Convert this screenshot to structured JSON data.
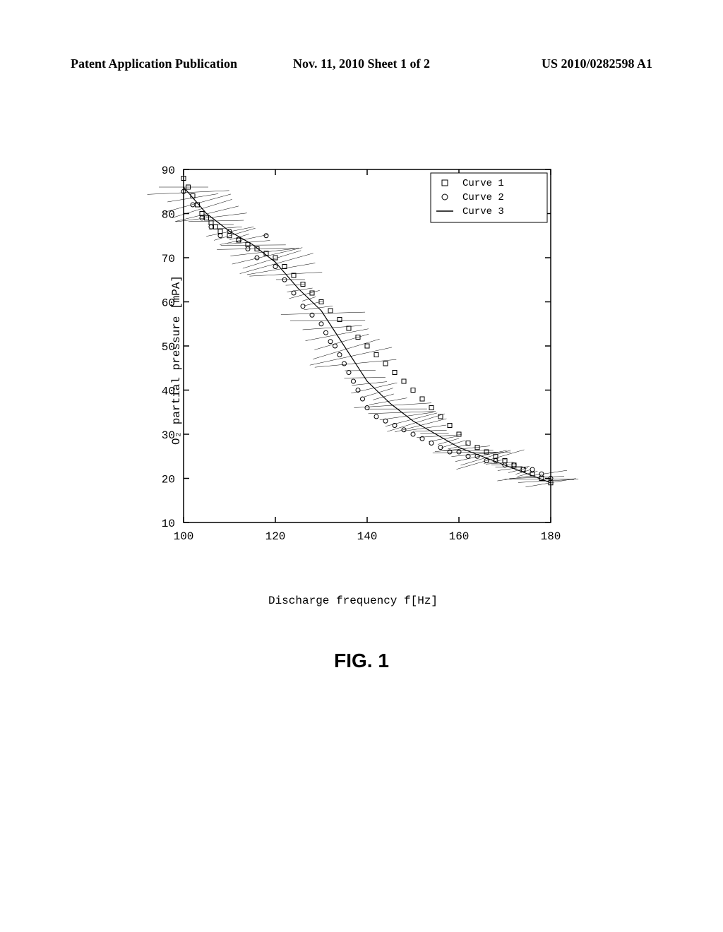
{
  "header": {
    "left": "Patent Application Publication",
    "center": "Nov. 11, 2010  Sheet 1 of 2",
    "right": "US 2010/0282598 A1"
  },
  "chart": {
    "type": "scatter-line",
    "xlabel": "Discharge frequency f[Hz]",
    "ylabel": "O₂ partial pressure [mPA]",
    "xlim": [
      100,
      180
    ],
    "ylim": [
      10,
      90
    ],
    "xticks": [
      100,
      120,
      140,
      160,
      180
    ],
    "yticks": [
      10,
      20,
      30,
      40,
      50,
      60,
      70,
      80,
      90
    ],
    "background_color": "#ffffff",
    "axis_color": "#000000",
    "tick_length": 8,
    "axis_width": 1.5,
    "font_family": "Courier New",
    "tick_fontsize": 16,
    "label_fontsize": 16,
    "legend": {
      "position": "top-right",
      "border_color": "#000000",
      "background_color": "#ffffff",
      "items": [
        {
          "marker": "square-open",
          "label": "Curve 1"
        },
        {
          "marker": "circle-open",
          "label": "Curve 2"
        },
        {
          "marker": "line",
          "label": "Curve 3"
        }
      ]
    },
    "series": [
      {
        "name": "Curve 1",
        "marker": "square-open",
        "marker_size": 6,
        "color": "#000000",
        "data": [
          [
            100,
            88
          ],
          [
            101,
            86
          ],
          [
            102,
            84
          ],
          [
            103,
            82
          ],
          [
            104,
            80
          ],
          [
            105,
            79
          ],
          [
            106,
            78
          ],
          [
            107,
            77
          ],
          [
            108,
            76
          ],
          [
            110,
            75
          ],
          [
            112,
            74
          ],
          [
            114,
            73
          ],
          [
            116,
            72
          ],
          [
            118,
            71
          ],
          [
            120,
            70
          ],
          [
            122,
            68
          ],
          [
            124,
            66
          ],
          [
            126,
            64
          ],
          [
            128,
            62
          ],
          [
            130,
            60
          ],
          [
            132,
            58
          ],
          [
            134,
            56
          ],
          [
            136,
            54
          ],
          [
            138,
            52
          ],
          [
            140,
            50
          ],
          [
            142,
            48
          ],
          [
            144,
            46
          ],
          [
            146,
            44
          ],
          [
            148,
            42
          ],
          [
            150,
            40
          ],
          [
            152,
            38
          ],
          [
            154,
            36
          ],
          [
            156,
            34
          ],
          [
            158,
            32
          ],
          [
            160,
            30
          ],
          [
            162,
            28
          ],
          [
            164,
            27
          ],
          [
            166,
            26
          ],
          [
            168,
            25
          ],
          [
            170,
            24
          ],
          [
            172,
            23
          ],
          [
            174,
            22
          ],
          [
            176,
            21
          ],
          [
            178,
            20
          ],
          [
            180,
            19
          ]
        ]
      },
      {
        "name": "Curve 2",
        "marker": "circle-open",
        "marker_size": 6,
        "color": "#000000",
        "data": [
          [
            100,
            85
          ],
          [
            102,
            82
          ],
          [
            104,
            79
          ],
          [
            106,
            77
          ],
          [
            108,
            75
          ],
          [
            110,
            76
          ],
          [
            112,
            74
          ],
          [
            114,
            72
          ],
          [
            116,
            70
          ],
          [
            118,
            75
          ],
          [
            120,
            68
          ],
          [
            122,
            65
          ],
          [
            124,
            62
          ],
          [
            126,
            59
          ],
          [
            128,
            57
          ],
          [
            130,
            55
          ],
          [
            131,
            53
          ],
          [
            132,
            51
          ],
          [
            133,
            50
          ],
          [
            134,
            48
          ],
          [
            135,
            46
          ],
          [
            136,
            44
          ],
          [
            137,
            42
          ],
          [
            138,
            40
          ],
          [
            139,
            38
          ],
          [
            140,
            36
          ],
          [
            142,
            34
          ],
          [
            144,
            33
          ],
          [
            146,
            32
          ],
          [
            148,
            31
          ],
          [
            150,
            30
          ],
          [
            152,
            29
          ],
          [
            154,
            28
          ],
          [
            156,
            27
          ],
          [
            158,
            26
          ],
          [
            160,
            26
          ],
          [
            162,
            25
          ],
          [
            164,
            25
          ],
          [
            166,
            24
          ],
          [
            168,
            24
          ],
          [
            170,
            23
          ],
          [
            172,
            23
          ],
          [
            174,
            22
          ],
          [
            176,
            22
          ],
          [
            178,
            21
          ],
          [
            180,
            20
          ]
        ]
      },
      {
        "name": "Curve 3",
        "marker": "line",
        "line_width": 1,
        "color": "#000000",
        "hatch_density": "dense",
        "data": [
          [
            100,
            86
          ],
          [
            105,
            80
          ],
          [
            110,
            76
          ],
          [
            115,
            73
          ],
          [
            120,
            69
          ],
          [
            125,
            63
          ],
          [
            130,
            58
          ],
          [
            135,
            50
          ],
          [
            140,
            42
          ],
          [
            145,
            37
          ],
          [
            150,
            33
          ],
          [
            155,
            30
          ],
          [
            160,
            27
          ],
          [
            165,
            25
          ],
          [
            170,
            23
          ],
          [
            175,
            21
          ],
          [
            180,
            19
          ]
        ]
      }
    ],
    "hatch_lines": {
      "color": "#000000",
      "width": 0.5,
      "count": 80,
      "spread": 35
    }
  },
  "figure_label": "FIG. 1"
}
